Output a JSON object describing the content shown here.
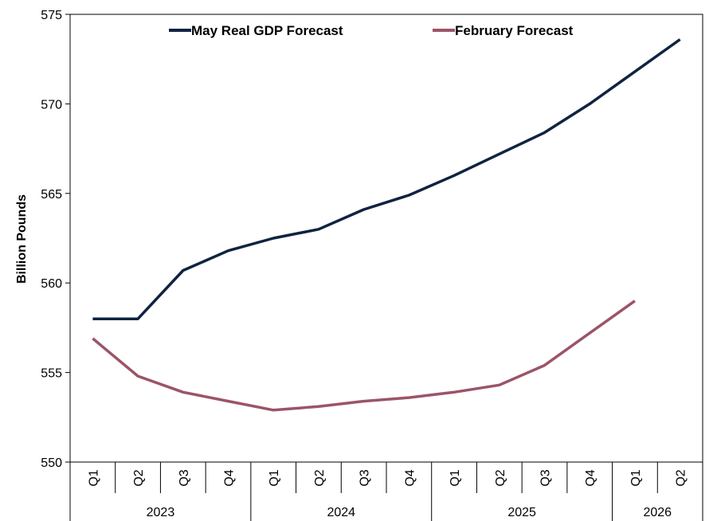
{
  "chart_data": {
    "type": "line",
    "ylabel": "Billion Pounds",
    "ylim": [
      550,
      575
    ],
    "yticks": [
      "550",
      "555",
      "560",
      "565",
      "570",
      "575"
    ],
    "quarters": [
      "Q1",
      "Q2",
      "Q3",
      "Q4",
      "Q1",
      "Q2",
      "Q3",
      "Q4",
      "Q1",
      "Q2",
      "Q3",
      "Q4",
      "Q1",
      "Q2"
    ],
    "years": [
      {
        "label": "2023",
        "quarters": 4
      },
      {
        "label": "2024",
        "quarters": 4
      },
      {
        "label": "2025",
        "quarters": 4
      },
      {
        "label": "2026",
        "quarters": 2
      }
    ],
    "legend_position": "top",
    "series": [
      {
        "name": "May Real GDP Forecast",
        "color": "#0f2341",
        "values": [
          558.0,
          558.0,
          560.7,
          561.8,
          562.5,
          563.0,
          564.1,
          564.9,
          566.0,
          567.2,
          568.4,
          570.0,
          571.8,
          573.6
        ]
      },
      {
        "name": "February Forecast",
        "color": "#9c5467",
        "values": [
          556.9,
          554.8,
          553.9,
          553.4,
          552.9,
          553.1,
          553.4,
          553.6,
          553.9,
          554.3,
          555.4,
          557.2,
          559.0,
          null
        ]
      }
    ]
  }
}
